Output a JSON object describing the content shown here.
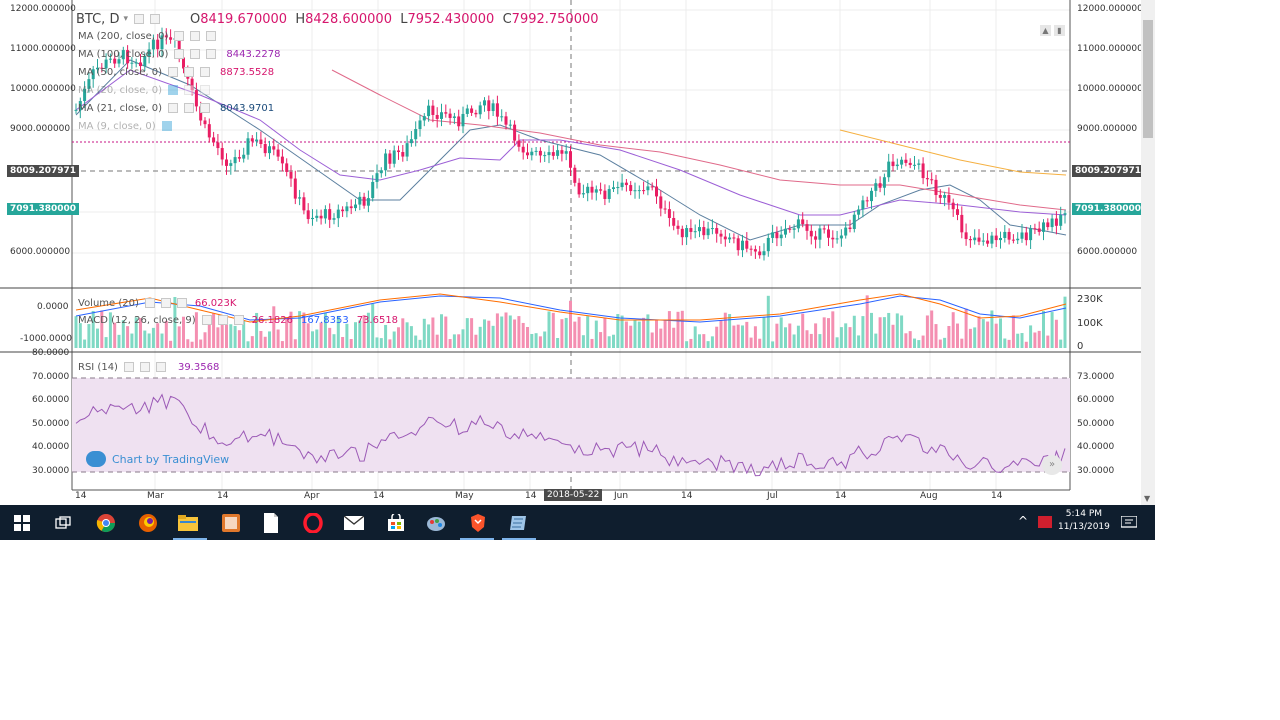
{
  "chart": {
    "symbol": "BTC, D",
    "ohlc": {
      "o_label": "O",
      "o": "8419.670000",
      "h_label": "H",
      "h": "8428.600000",
      "l_label": "L",
      "l": "7952.430000",
      "c_label": "C",
      "c": "7992.750000"
    },
    "indicators": [
      {
        "label": "MA (200, close, 0)",
        "value": ""
      },
      {
        "label": "MA (100, close, 0)",
        "value": "8443.2278"
      },
      {
        "label": "MA (50, close, 0)",
        "value": "8873.5528"
      },
      {
        "label": "MA (20, close, 0)",
        "value": ""
      },
      {
        "label": "MA (21, close, 0)",
        "value": "8043.9701"
      },
      {
        "label": "MA (9, close, 0)",
        "value": ""
      }
    ],
    "price_axis": [
      "12000.000000",
      "11000.000000",
      "10000.000000",
      "9000.000000",
      "6000.000000"
    ],
    "left_axis": [
      "12000.000000",
      "11000.000000",
      "10000.000000",
      "9000.000000",
      "6000.000000"
    ],
    "tag_dashed": "8009.207971",
    "tag_current": "7091.380000",
    "volume_label": "Volume (20)",
    "volume_value": "66.023K",
    "macd_label": "MACD (12, 26, close, 9)",
    "macd_values": [
      "26.1826",
      "167.8353",
      "73.6518"
    ],
    "macd_left": [
      "0.0000",
      "-1000.0000"
    ],
    "volume_axis": [
      "230K",
      "100K",
      "0"
    ],
    "rsi_label": "RSI (14)",
    "rsi_value": "39.3568",
    "rsi_axis": [
      "80.0000",
      "70.0000",
      "60.0000",
      "50.0000",
      "40.0000",
      "30.0000"
    ],
    "rsi_axis_right": [
      "73.0000",
      "60.0000",
      "50.0000",
      "40.0000",
      "30.0000"
    ],
    "x_labels": [
      "14",
      "Mar",
      "14",
      "Apr",
      "14",
      "May",
      "14",
      "Jun",
      "14",
      "Jul",
      "14",
      "Aug",
      "14"
    ],
    "crosshair_date": "2018-05-22",
    "watermark": "Chart by TradingView",
    "colors": {
      "up": "#26a69a",
      "down": "#e91e63",
      "ma_blue": "#5b7f9f",
      "ma_purple": "#9c5fd6",
      "ma_red": "#e06a8a",
      "ma_orange": "#f5b041",
      "rsi_fill": "#efe1f1"
    }
  },
  "taskbar": {
    "time": "5:14 PM",
    "date": "11/13/2019",
    "icons": [
      "windows-start",
      "task-view",
      "chrome",
      "firefox",
      "file-explorer",
      "app-orange",
      "document",
      "opera",
      "mail",
      "store",
      "app-paint",
      "brave",
      "app-blue"
    ]
  }
}
